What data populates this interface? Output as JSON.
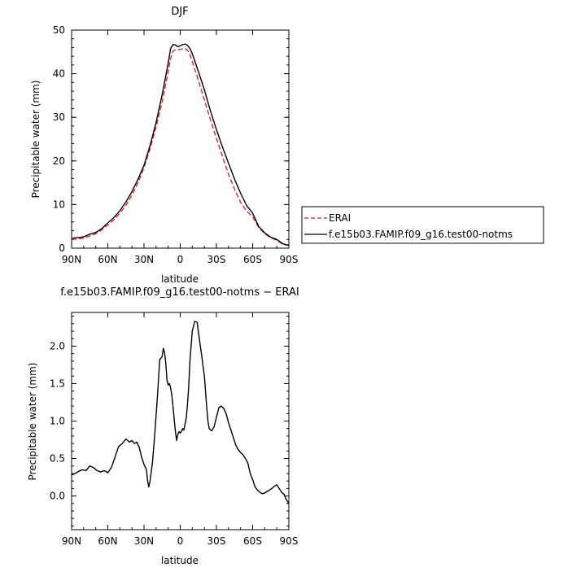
{
  "chart_data": [
    {
      "type": "line",
      "title": "DJF",
      "xlabel": "latitude",
      "ylabel": "Precipitable water (mm)",
      "x_ticks": [
        "90N",
        "60N",
        "30N",
        "0",
        "30S",
        "60S",
        "90S"
      ],
      "y_ticks": [
        "0",
        "10",
        "20",
        "30",
        "40",
        "50"
      ],
      "xlim": [
        90,
        -90
      ],
      "ylim": [
        0,
        50
      ],
      "legend_position": "right",
      "series": [
        {
          "name": "ERAI",
          "color": "#dd2222",
          "dash": "dashed",
          "x": [
            90,
            85,
            80,
            75,
            70,
            65,
            60,
            55,
            50,
            45,
            40,
            35,
            30,
            25,
            20,
            15,
            10,
            8,
            6,
            4,
            2,
            0,
            -2,
            -4,
            -6,
            -8,
            -10,
            -15,
            -20,
            -25,
            -30,
            -35,
            -40,
            -45,
            -50,
            -55,
            -60,
            -65,
            -70,
            -75,
            -80,
            -85,
            -90
          ],
          "y": [
            2.0,
            2.1,
            2.3,
            2.8,
            3.3,
            4.2,
            5.3,
            6.5,
            8.0,
            9.8,
            12.2,
            15.0,
            18.5,
            22.8,
            27.8,
            33.5,
            40.5,
            43.5,
            45.2,
            45.5,
            45.5,
            45.6,
            45.7,
            45.8,
            45.4,
            44.4,
            42.8,
            38.5,
            34.0,
            29.5,
            25.2,
            21.0,
            17.0,
            13.5,
            10.5,
            8.5,
            7.2,
            4.8,
            3.3,
            2.4,
            1.8,
            0.9,
            0.7
          ]
        },
        {
          "name": "f.e15b03.FAMIP.f09_g16.test00-notms",
          "color": "#000000",
          "dash": "solid",
          "x": [
            90,
            85,
            80,
            75,
            70,
            65,
            60,
            55,
            50,
            45,
            40,
            35,
            30,
            25,
            20,
            15,
            10,
            8,
            6,
            4,
            2,
            0,
            -2,
            -4,
            -6,
            -8,
            -10,
            -15,
            -20,
            -25,
            -30,
            -35,
            -40,
            -45,
            -50,
            -55,
            -60,
            -65,
            -70,
            -75,
            -80,
            -85,
            -90
          ],
          "y": [
            2.3,
            2.4,
            2.6,
            3.2,
            3.6,
            4.5,
            5.8,
            7.0,
            8.6,
            10.6,
            13.0,
            15.8,
            19.0,
            23.5,
            28.8,
            35.2,
            42.4,
            45.7,
            46.7,
            46.6,
            46.2,
            46.4,
            46.7,
            46.8,
            46.5,
            45.8,
            44.6,
            40.5,
            36.3,
            31.5,
            27.2,
            23.2,
            19.5,
            15.8,
            12.6,
            9.8,
            8.0,
            5.0,
            3.5,
            2.5,
            2.0,
            1.0,
            0.6
          ]
        }
      ]
    },
    {
      "type": "line",
      "title": "f.e15b03.FAMIP.f09_g16.test00-notms − ERAI",
      "xlabel": "latitude",
      "ylabel": "Precipitable water (mm)",
      "x_ticks": [
        "90N",
        "60N",
        "30N",
        "0",
        "30S",
        "60S",
        "90S"
      ],
      "y_ticks": [
        "0.0",
        "0.5",
        "1.0",
        "1.5",
        "2.0"
      ],
      "xlim": [
        90,
        -90
      ],
      "ylim": [
        -0.45,
        2.45
      ],
      "series": [
        {
          "color": "#000000",
          "dash": "solid",
          "x": [
            90,
            87,
            84,
            81,
            78,
            75,
            72,
            69,
            66,
            63,
            60,
            57,
            54,
            51,
            48,
            45,
            42,
            40,
            38,
            36,
            34,
            32,
            30,
            28,
            27,
            26,
            25,
            23,
            21,
            19,
            17,
            15,
            14,
            13,
            12,
            11,
            10,
            9,
            8,
            7,
            6,
            5,
            4,
            3,
            2,
            1,
            0,
            -1,
            -2,
            -3,
            -4,
            -5,
            -6,
            -7,
            -8,
            -10,
            -12,
            -14,
            -16,
            -18,
            -19,
            -20,
            -21,
            -22,
            -23,
            -24,
            -26,
            -28,
            -30,
            -32,
            -34,
            -36,
            -38,
            -40,
            -42,
            -44,
            -46,
            -48,
            -50,
            -52,
            -54,
            -56,
            -58,
            -60,
            -62,
            -64,
            -66,
            -68,
            -70,
            -72,
            -74,
            -76,
            -78,
            -80,
            -82,
            -84,
            -86,
            -88,
            -90
          ],
          "y": [
            0.28,
            0.3,
            0.33,
            0.35,
            0.34,
            0.4,
            0.38,
            0.34,
            0.32,
            0.34,
            0.31,
            0.38,
            0.52,
            0.66,
            0.7,
            0.76,
            0.72,
            0.74,
            0.7,
            0.72,
            0.65,
            0.52,
            0.42,
            0.35,
            0.2,
            0.12,
            0.2,
            0.45,
            0.85,
            1.3,
            1.82,
            1.86,
            1.97,
            1.92,
            1.78,
            1.55,
            1.48,
            1.5,
            1.45,
            1.35,
            1.2,
            1.02,
            0.86,
            0.74,
            0.82,
            0.86,
            0.84,
            0.86,
            0.9,
            0.88,
            0.96,
            1.04,
            1.22,
            1.45,
            1.8,
            2.2,
            2.33,
            2.32,
            2.08,
            1.85,
            1.72,
            1.6,
            1.38,
            1.18,
            1.0,
            0.9,
            0.87,
            0.92,
            1.05,
            1.18,
            1.2,
            1.17,
            1.1,
            0.98,
            0.88,
            0.78,
            0.68,
            0.62,
            0.58,
            0.55,
            0.5,
            0.44,
            0.3,
            0.22,
            0.12,
            0.08,
            0.05,
            0.03,
            0.04,
            0.06,
            0.08,
            0.1,
            0.13,
            0.15,
            0.1,
            0.05,
            0.02,
            -0.05,
            -0.1
          ]
        }
      ]
    }
  ]
}
